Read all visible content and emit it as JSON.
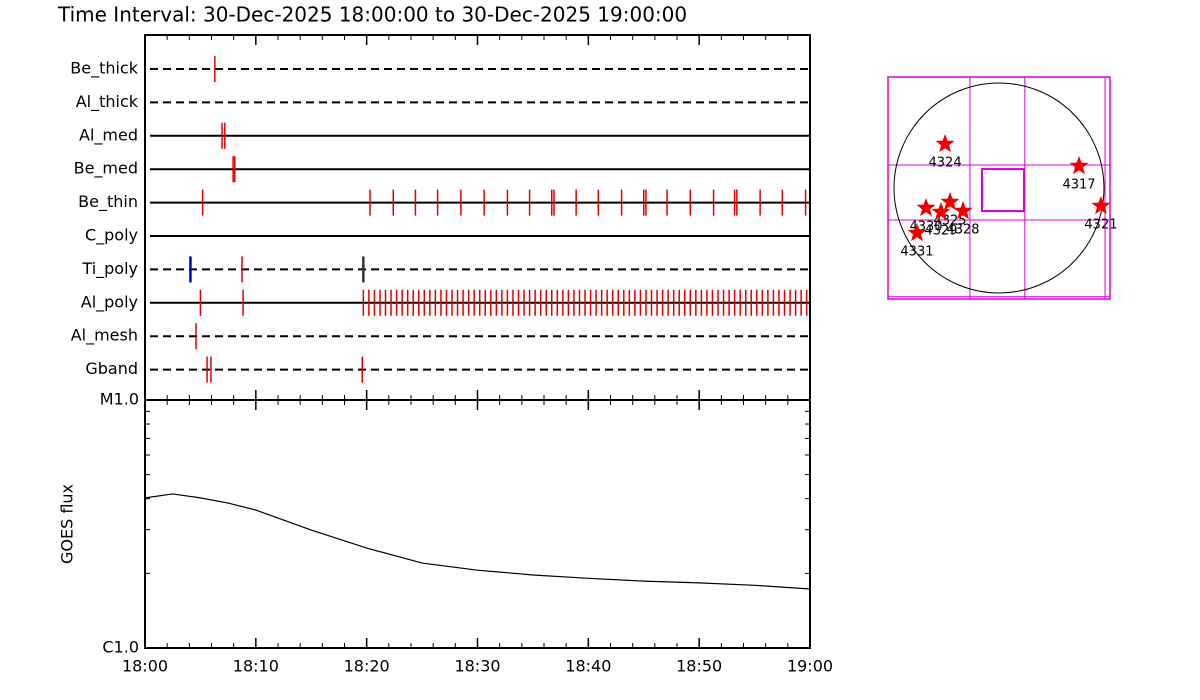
{
  "chart_data": [
    {
      "type": "timeline",
      "title": "Time Interval: 30-Dec-2025 18:00:00 to 30-Dec-2025 19:00:00",
      "xlim": [
        0,
        60
      ],
      "color": "#e00000",
      "series": [
        {
          "name": "Be_thick",
          "style": "dashed",
          "values": [
            6.3
          ]
        },
        {
          "name": "Al_thick",
          "style": "dashed",
          "values": []
        },
        {
          "name": "Al_med",
          "style": "solid",
          "values": [
            6.95,
            7.2
          ]
        },
        {
          "name": "Be_med",
          "style": "solid",
          "values": [
            7.95,
            8.1
          ]
        },
        {
          "name": "Be_thin",
          "style": "solid",
          "values": [
            5.2,
            20.3,
            22.4,
            24.4,
            26.4,
            28.5,
            30.6,
            32.7,
            34.7,
            36.7,
            36.9,
            38.9,
            40.9,
            43.0,
            45.0,
            45.2,
            47.1,
            49.2,
            51.3,
            53.2,
            53.4,
            55.5,
            57.5,
            59.6
          ]
        },
        {
          "name": "C_poly",
          "style": "solid",
          "values": []
        },
        {
          "name": "Ti_poly",
          "style": "dashed",
          "values": [
            4.1,
            8.75,
            19.7
          ],
          "colors": [
            "#0000cc",
            "#e00000",
            "#333333"
          ]
        },
        {
          "name": "Al_poly",
          "style": "solid",
          "values": [
            5.0,
            8.85,
            19.7,
            20.2,
            20.7,
            21.2,
            21.7,
            22.2,
            22.7,
            23.2,
            23.7,
            24.2,
            24.7,
            25.2,
            25.7,
            26.2,
            26.7,
            27.2,
            27.7,
            28.2,
            28.7,
            29.2,
            29.7,
            30.2,
            30.7,
            31.2,
            31.7,
            32.2,
            32.7,
            33.2,
            33.7,
            34.2,
            34.7,
            35.2,
            35.7,
            36.2,
            36.7,
            37.2,
            37.7,
            38.2,
            38.7,
            39.2,
            39.7,
            40.2,
            40.7,
            41.2,
            41.7,
            42.2,
            42.7,
            43.2,
            43.7,
            44.2,
            44.7,
            45.2,
            45.7,
            46.2,
            46.7,
            47.2,
            47.7,
            48.2,
            48.7,
            49.2,
            49.7,
            50.2,
            50.7,
            51.2,
            51.7,
            52.2,
            52.7,
            53.2,
            53.7,
            54.2,
            54.7,
            55.2,
            55.7,
            56.2,
            56.7,
            57.2,
            57.7,
            58.2,
            58.7,
            59.2,
            59.7
          ]
        },
        {
          "name": "Al_mesh",
          "style": "dashed",
          "values": [
            4.6
          ]
        },
        {
          "name": "Gband",
          "style": "dashed",
          "values": [
            5.6,
            5.95,
            19.6
          ]
        }
      ]
    },
    {
      "type": "line",
      "y_label": "GOES flux",
      "log_y": true,
      "color": "#000000",
      "x": [
        0,
        2.5,
        5,
        7.5,
        10,
        15,
        20,
        25,
        30,
        35,
        40,
        45,
        50,
        55,
        60
      ],
      "values": [
        4.03e-06,
        4.18e-06,
        4.03e-06,
        3.84e-06,
        3.6e-06,
        2.99e-06,
        2.53e-06,
        2.2e-06,
        2.06e-06,
        1.97e-06,
        1.91e-06,
        1.86e-06,
        1.83e-06,
        1.79e-06,
        1.73e-06
      ],
      "xlim": [
        0,
        60
      ],
      "xticks": [
        {
          "value": 0,
          "label": "18:00"
        },
        {
          "value": 10,
          "label": "18:10"
        },
        {
          "value": 20,
          "label": "18:20"
        },
        {
          "value": 30,
          "label": "18:30"
        },
        {
          "value": 40,
          "label": "18:40"
        },
        {
          "value": 50,
          "label": "18:50"
        },
        {
          "value": 60,
          "label": "19:00"
        }
      ],
      "xminorticks": [
        2,
        4,
        6,
        8,
        12,
        14,
        16,
        18,
        22,
        24,
        26,
        28,
        32,
        34,
        36,
        38,
        42,
        44,
        46,
        48,
        52,
        54,
        56,
        58
      ],
      "ylim": [
        1e-06,
        1e-05
      ],
      "yticks": [
        {
          "value": 1e-06,
          "label": "C1.0"
        },
        {
          "value": 1e-05,
          "label": "M1.0"
        }
      ],
      "yminorticks": [
        2e-06,
        3e-06,
        4e-06,
        5e-06,
        6e-06,
        7e-06,
        8e-06,
        9e-06
      ]
    },
    {
      "type": "scatter",
      "color": "#ee0000",
      "grid_color": "#dd00dd",
      "xlim": [
        -1031,
        1031
      ],
      "ylim": [
        -1031,
        1031
      ],
      "sun_radius": 975,
      "grid_x": [
        -270,
        240,
        985
      ],
      "grid_y": [
        214,
        -297,
        -1010
      ],
      "fov": [
        -158,
        232,
        -214,
        176
      ],
      "labels": [
        "4324",
        "4317",
        "4321",
        "4325",
        "4329",
        "4330",
        "4331",
        "4328"
      ],
      "x": [
        -501,
        743,
        947,
        -455,
        -539,
        -678,
        -762,
        -334
      ],
      "values": [
        409,
        204,
        -167,
        -130,
        -223,
        -186,
        -418,
        -214
      ]
    }
  ]
}
